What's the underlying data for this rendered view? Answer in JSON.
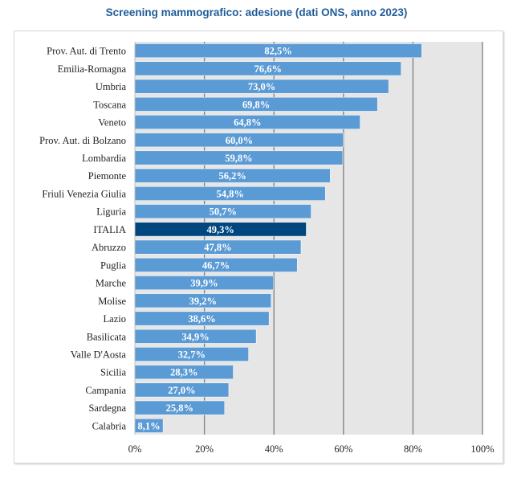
{
  "chart_data": {
    "type": "bar",
    "orientation": "horizontal",
    "title": "Screening mammografico: adesione (dati ONS, anno 2023)",
    "xlabel": "",
    "ylabel": "",
    "xlim": [
      0,
      100
    ],
    "grid": true,
    "categories": [
      "Prov. Aut. di Trento",
      "Emilia-Romagna",
      "Umbria",
      "Toscana",
      "Veneto",
      "Prov. Aut. di Bolzano",
      "Lombardia",
      "Piemonte",
      "Friuli Venezia Giulia",
      "Liguria",
      "ITALIA",
      "Abruzzo",
      "Puglia",
      "Marche",
      "Molise",
      "Lazio",
      "Basilicata",
      "Valle D'Aosta",
      "Sicilia",
      "Campania",
      "Sardegna",
      "Calabria"
    ],
    "values": [
      82.5,
      76.6,
      73.0,
      69.8,
      64.8,
      60.0,
      59.8,
      56.2,
      54.8,
      50.7,
      49.3,
      47.8,
      46.7,
      39.9,
      39.2,
      38.6,
      34.9,
      32.7,
      28.3,
      27.0,
      25.8,
      8.1
    ],
    "data_labels": [
      "82,5%",
      "76,6%",
      "73,0%",
      "69,8%",
      "64,8%",
      "60,0%",
      "59,8%",
      "56,2%",
      "54,8%",
      "50,7%",
      "49,3%",
      "47,8%",
      "46,7%",
      "39,9%",
      "39,2%",
      "38,6%",
      "34,9%",
      "32,7%",
      "28,3%",
      "27,0%",
      "25,8%",
      "8,1%"
    ],
    "x_ticks": [
      0,
      20,
      40,
      60,
      80,
      100
    ],
    "x_tick_labels": [
      "0%",
      "20%",
      "40%",
      "60%",
      "80%",
      "100%"
    ],
    "highlight": "ITALIA",
    "colors": {
      "bar": "#5b9bd5",
      "highlight": "#00467f",
      "plot_bg": "#e6e6e6",
      "grid": "#7f7f7f",
      "title": "#1f5c99"
    }
  }
}
